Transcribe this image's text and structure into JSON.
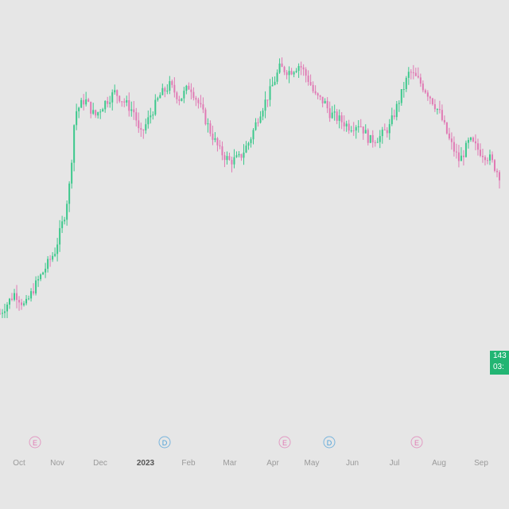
{
  "chart_data": {
    "type": "candlestick",
    "title": "",
    "xlabel": "",
    "ylabel": "",
    "up_color": "#3cc88c",
    "down_color": "#e07ab4",
    "grid": false,
    "legend": "none",
    "ylim": [
      0,
      100
    ],
    "x_ticks": [
      "Oct",
      "Nov",
      "Dec",
      "2023",
      "Feb",
      "Mar",
      "Apr",
      "May",
      "Jun",
      "Jul",
      "Aug",
      "Sep"
    ],
    "x_tick_highlight": "2023",
    "last_price": {
      "line1": "143",
      "line2": "03:"
    },
    "events": [
      {
        "type": "earnings",
        "symbol": "E",
        "color": "#e07ab4",
        "at": "Oct"
      },
      {
        "type": "dividend",
        "symbol": "D",
        "color": "#4a9fd8",
        "at": "Jan"
      },
      {
        "type": "earnings",
        "symbol": "E",
        "color": "#e07ab4",
        "at": "Apr"
      },
      {
        "type": "dividend",
        "symbol": "D",
        "color": "#4a9fd8",
        "at": "Apr"
      },
      {
        "type": "earnings",
        "symbol": "E",
        "color": "#e07ab4",
        "at": "Jul"
      }
    ],
    "close_path": [
      [
        0,
        22
      ],
      [
        3,
        28
      ],
      [
        5,
        24
      ],
      [
        7,
        30
      ],
      [
        9,
        35
      ],
      [
        11,
        40
      ],
      [
        13,
        51
      ],
      [
        14,
        60
      ],
      [
        15,
        80
      ],
      [
        17,
        84
      ],
      [
        19,
        79
      ],
      [
        21,
        83
      ],
      [
        23,
        86
      ],
      [
        25,
        83
      ],
      [
        27,
        80
      ],
      [
        28,
        73
      ],
      [
        30,
        79
      ],
      [
        32,
        85
      ],
      [
        34,
        88
      ],
      [
        36,
        84
      ],
      [
        38,
        88
      ],
      [
        40,
        82
      ],
      [
        42,
        75
      ],
      [
        44,
        69
      ],
      [
        46,
        66
      ],
      [
        48,
        67
      ],
      [
        50,
        72
      ],
      [
        52,
        80
      ],
      [
        54,
        86
      ],
      [
        56,
        93
      ],
      [
        58,
        92
      ],
      [
        60,
        94
      ],
      [
        62,
        89
      ],
      [
        63,
        85
      ],
      [
        65,
        83
      ],
      [
        66,
        80
      ],
      [
        68,
        78
      ],
      [
        70,
        76
      ],
      [
        72,
        77
      ],
      [
        74,
        72
      ],
      [
        76,
        73
      ],
      [
        78,
        76
      ],
      [
        80,
        84
      ],
      [
        82,
        92
      ],
      [
        84,
        89
      ],
      [
        86,
        85
      ],
      [
        88,
        80
      ],
      [
        90,
        72
      ],
      [
        92,
        66
      ],
      [
        94,
        72
      ],
      [
        96,
        69
      ],
      [
        98,
        67
      ],
      [
        100,
        62
      ]
    ]
  }
}
